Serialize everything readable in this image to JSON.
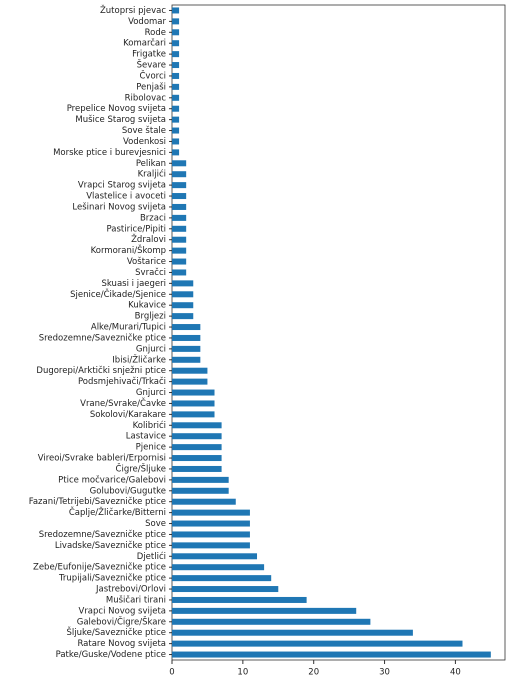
{
  "chart_data": {
    "type": "barh",
    "categories": [
      "Žutoprsi pjevac",
      "Vodomar",
      "Rode",
      "Komarčari",
      "Frigatke",
      "Ševare",
      "Čvorci",
      "Penjaši",
      "Ribolovac",
      "Prepelice Novog svijeta",
      "Mušice Starog svijeta",
      "Sove štale",
      "Vodenkosi",
      "Morske ptice i burevjesnici",
      "Pelikan",
      "Kraljići",
      "Vrapci Starog svijeta",
      "Vlastelice i avoceti",
      "Lešinari Novog svijeta",
      "Brzaci",
      "Pastirice/Pipiti",
      "Ždralovi",
      "Kormorani/Škomp",
      "Voštarice",
      "Svračci",
      "Skuasi i jaegeri",
      "Sjenice/Čikade/Sjenice",
      "Kukavice",
      "Brgljezi",
      "Alke/Murari/Tupici",
      "Sredozemne/Savezničke ptice",
      "Gnjurci",
      "Ibisi/Žličarke",
      "Dugorepi/Arktički snježni ptice",
      "Podsmjehivači/Trkači",
      "Gnjurci",
      "Vrane/Svrake/Čavke",
      "Sokolovi/Karakare",
      "Kolibrići",
      "Lastavice",
      "Pjenice",
      "Vireoi/Svrake bableri/Erpornisi",
      "Čigre/Šljuke",
      "Ptice močvarice/Galebovi",
      "Golubovi/Gugutke",
      "Fazani/Tetrijebi/Savezničke ptice",
      "Čaplje/Žličarke/Bitterni",
      "Sove",
      "Sredozemne/Savezničke ptice",
      "Livadske/Savezničke ptice",
      "Djetlići",
      "Zebe/Eufonije/Savezničke ptice",
      "Trupijali/Savezničke ptice",
      "Jastrebovi/Orlovi",
      "Mušičari tirani",
      "Vrapci Novog svijeta",
      "Galebovi/Čigre/Škare",
      "Šljuke/Savezničke ptice",
      "Ratare Novog svijeta",
      "Patke/Guske/Vodene ptice"
    ],
    "values": [
      1,
      1,
      1,
      1,
      1,
      1,
      1,
      1,
      1,
      1,
      1,
      1,
      1,
      1,
      2,
      2,
      2,
      2,
      2,
      2,
      2,
      2,
      2,
      2,
      2,
      3,
      3,
      3,
      3,
      4,
      4,
      4,
      4,
      5,
      5,
      6,
      6,
      6,
      7,
      7,
      7,
      7,
      7,
      8,
      8,
      9,
      11,
      11,
      11,
      11,
      12,
      13,
      14,
      15,
      19,
      26,
      28,
      34,
      41,
      45
    ],
    "color": "#1f77b4",
    "xlim": [
      0,
      47
    ],
    "xticks": [
      0,
      10,
      20,
      30,
      40
    ]
  }
}
